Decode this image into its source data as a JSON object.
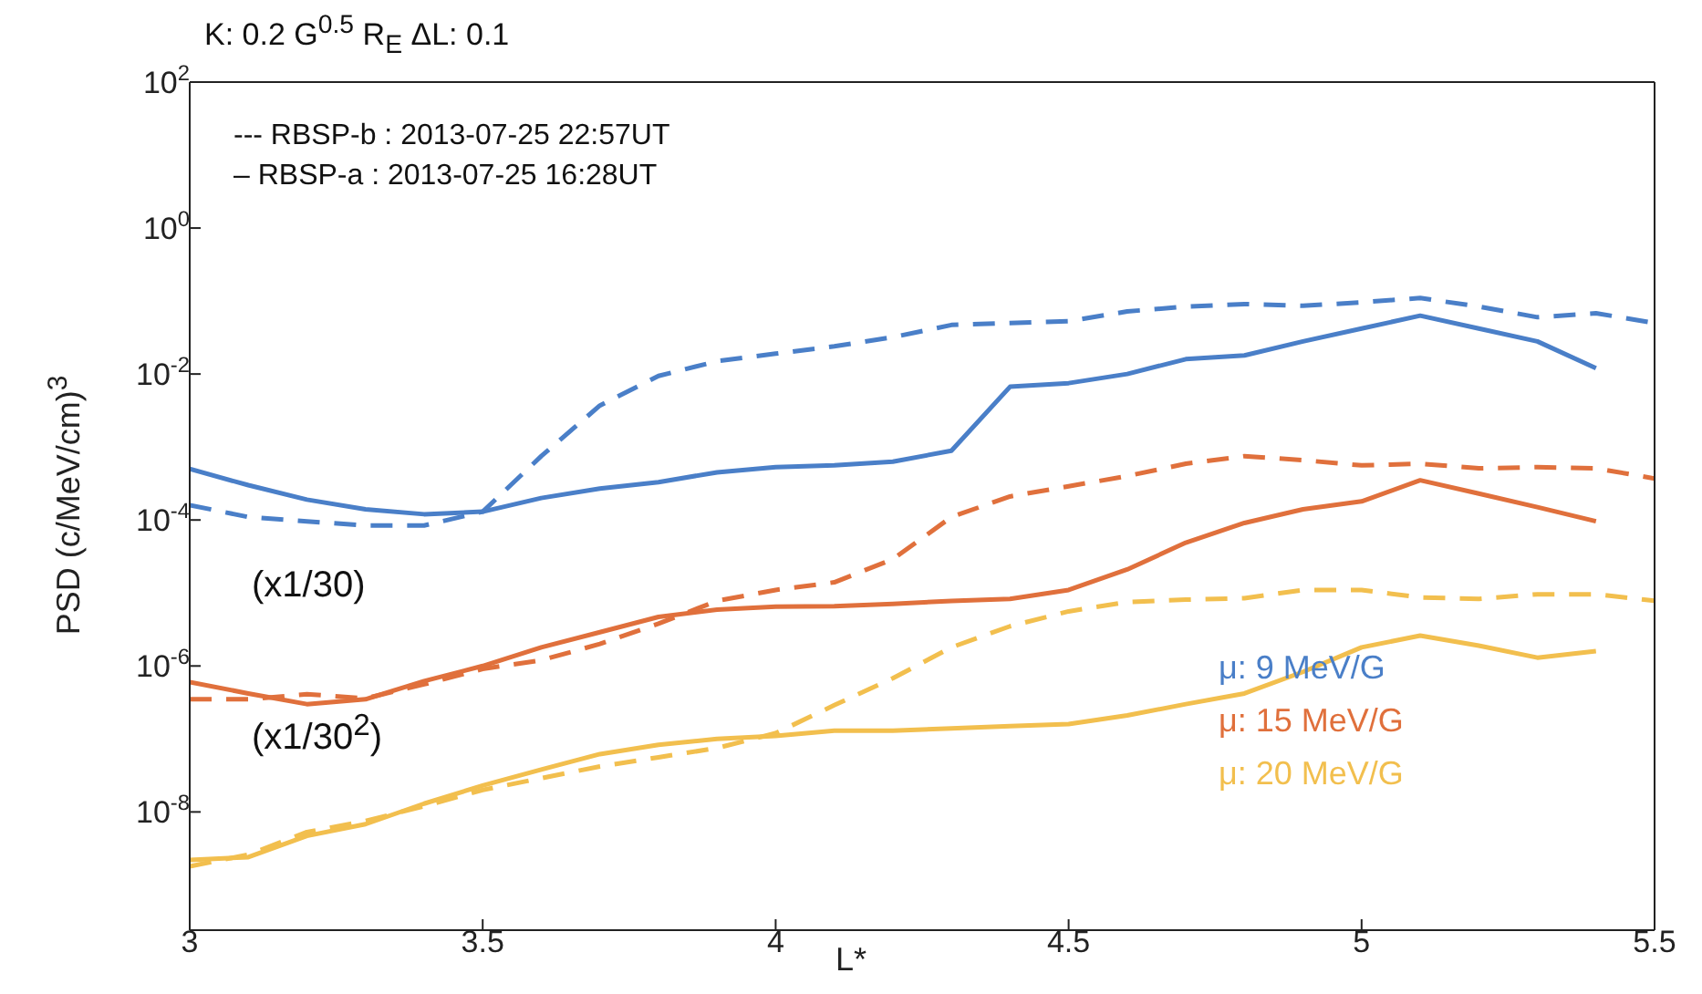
{
  "chart_data": {
    "type": "line",
    "title": "K: 0.2 G$^{0.5}$ R$_{E}$  ΔL: 0.1",
    "xlabel": "L*",
    "ylabel": "PSD (c/MeV/cm)$^{3}$",
    "x": [
      3.0,
      3.1,
      3.2,
      3.3,
      3.4,
      3.5,
      3.6,
      3.7,
      3.8,
      3.9,
      4.0,
      4.1,
      4.2,
      4.3,
      4.4,
      4.5,
      4.6,
      4.7,
      4.8,
      4.9,
      5.0,
      5.1,
      5.2,
      5.3,
      5.4,
      5.5
    ],
    "series": [
      {
        "name": "μ: 9 MeV/G",
        "color": "#4a7fc8",
        "line_style": "solid",
        "values": [
          0.0005,
          0.0003,
          0.00019,
          0.00014,
          0.00012,
          0.00013,
          0.0002,
          0.00027,
          0.00033,
          0.00045,
          0.00053,
          0.00056,
          0.00063,
          0.00089,
          0.0067,
          0.0075,
          0.01,
          0.016,
          0.018,
          0.028,
          0.042,
          0.063,
          0.042,
          0.028,
          0.012,
          null
        ]
      },
      {
        "color": "#4a7fc8",
        "line_style": "dashed",
        "values": [
          0.00016,
          0.00011,
          9.6e-05,
          8.4e-05,
          8.4e-05,
          0.00013,
          0.00075,
          0.0037,
          0.0094,
          0.015,
          0.019,
          0.024,
          0.032,
          0.047,
          0.05,
          0.053,
          0.072,
          0.084,
          0.091,
          0.086,
          0.096,
          0.11,
          0.084,
          0.06,
          0.068,
          0.05
        ]
      },
      {
        "name": "μ: 15 MeV/G",
        "color": "#e0703c",
        "line_style": "solid",
        "values": [
          6e-07,
          4.2e-07,
          3e-07,
          3.5e-07,
          6.2e-07,
          1e-06,
          1.8e-06,
          2.9e-06,
          4.7e-06,
          5.9e-06,
          6.5e-06,
          6.6e-06,
          7.1e-06,
          7.8e-06,
          8.3e-06,
          1.1e-05,
          2.1e-05,
          4.9e-05,
          9.1e-05,
          0.00014,
          0.00018,
          0.00035,
          0.00023,
          0.00015,
          9.6e-05,
          null
        ]
      },
      {
        "color": "#e0703c",
        "line_style": "dashed",
        "values": [
          3.5e-07,
          3.5e-07,
          4.1e-07,
          3.6e-07,
          5.6e-07,
          9.1e-07,
          1.2e-06,
          2e-06,
          3.8e-06,
          7.8e-06,
          1.1e-05,
          1.4e-05,
          2.9e-05,
          0.00011,
          0.00021,
          0.00029,
          0.0004,
          0.00059,
          0.00075,
          0.00066,
          0.00056,
          0.00059,
          0.00051,
          0.00053,
          0.00051,
          0.00037
        ]
      },
      {
        "name": "μ: 20 MeV/G",
        "color": "#f2bf4e",
        "line_style": "solid",
        "values": [
          2.2e-09,
          2.4e-09,
          4.7e-09,
          6.8e-09,
          1.3e-08,
          2.3e-08,
          3.8e-08,
          6.2e-08,
          8.3e-08,
          1e-07,
          1.1e-07,
          1.3e-07,
          1.3e-07,
          1.4e-07,
          1.5e-07,
          1.6e-07,
          2.1e-07,
          3e-07,
          4.2e-07,
          8.3e-07,
          1.8e-06,
          2.6e-06,
          1.9e-06,
          1.3e-06,
          1.6e-06,
          null
        ]
      },
      {
        "color": "#f2bf4e",
        "line_style": "dashed",
        "values": [
          1.8e-09,
          2.6e-09,
          5.3e-09,
          7.5e-09,
          1.2e-08,
          2e-08,
          2.9e-08,
          4.2e-08,
          5.6e-08,
          7.5e-08,
          1.2e-07,
          2.9e-07,
          6.8e-07,
          1.8e-06,
          3.5e-06,
          5.6e-06,
          7.5e-06,
          8.1e-06,
          8.5e-06,
          1.1e-05,
          1.1e-05,
          8.7e-06,
          8.3e-06,
          9.6e-06,
          9.6e-06,
          7.8e-06
        ]
      }
    ],
    "annotations": [
      "--- RBSP-b : 2013-07-25 22:57UT",
      "– RBSP-a : 2013-07-25 16:28UT",
      "(x1/30)",
      "(x1/30$^{2}$)"
    ],
    "xlim": [
      3,
      5.5
    ],
    "xticks": [
      3,
      3.5,
      4,
      4.5,
      5,
      5.5
    ],
    "ylim": [
      2.4e-10,
      100
    ],
    "log": "y",
    "yticks": [
      {
        "value": 1e-08,
        "label": "10$^{-8}$"
      },
      {
        "value": 1e-06,
        "label": "10$^{-6}$"
      },
      {
        "value": 0.0001,
        "label": "10$^{-4}$"
      },
      {
        "value": 0.01,
        "label": "10$^{-2}$"
      },
      {
        "value": 1,
        "label": "10$^{0}$"
      },
      {
        "value": 100,
        "label": "10$^{2}$"
      }
    ],
    "grid": false,
    "legend": false,
    "marker": "none"
  }
}
